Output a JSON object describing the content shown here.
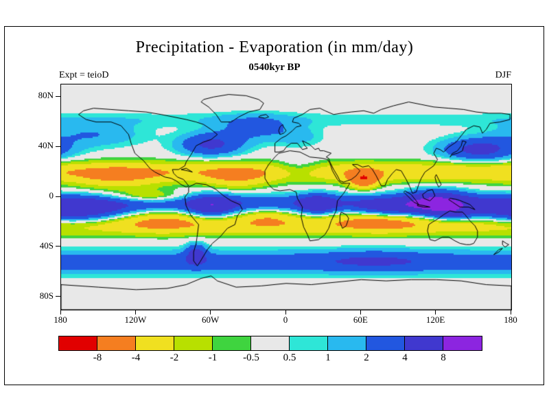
{
  "page": {
    "title": "Precipitation - Evaporation (in mm/day)",
    "subtitle": "0540kyr BP",
    "experiment_label": "Expt = teioD",
    "season_label": "DJF"
  },
  "chart_data": {
    "type": "heatmap",
    "projection": "equirectangular",
    "title": "Precipitation - Evaporation (in mm/day)",
    "subtitle": "0540kyr BP",
    "experiment": "teioD",
    "season": "DJF",
    "units": "mm/day",
    "grid": false,
    "x_axis": {
      "range": [
        -180,
        180
      ],
      "ticks": [
        "180",
        "120W",
        "60W",
        "0",
        "60E",
        "120E",
        "180"
      ],
      "tick_lons": [
        -180,
        -120,
        -60,
        0,
        60,
        120,
        180
      ]
    },
    "y_axis": {
      "range": [
        -90,
        90
      ],
      "ticks": [
        "80N",
        "40N",
        "0",
        "40S",
        "80S"
      ],
      "tick_lats": [
        80,
        40,
        0,
        -40,
        -80
      ]
    },
    "colorbar": {
      "position": "bottom",
      "levels": [
        -8,
        -4,
        -2,
        -1,
        -0.5,
        0.5,
        1,
        2,
        4,
        8
      ],
      "labels": [
        "-8",
        "-4",
        "-2",
        "-1",
        "-0.5",
        "0.5",
        "1",
        "2",
        "4",
        "8"
      ],
      "colors": [
        "#e10000",
        "#f57e20",
        "#f0e020",
        "#b8e000",
        "#3fd43f",
        "#e8e8e8",
        "#2ee6d7",
        "#29b9ef",
        "#2257e0",
        "#4038cf",
        "#8c25e0"
      ]
    },
    "field_features": [
      {
        "name": "itcz-band",
        "lat": -5,
        "lon": null,
        "latw": 7,
        "lonw": null,
        "amp": 3.5
      },
      {
        "name": "spcz",
        "lat": -12,
        "lon": -170,
        "latw": 10,
        "lonw": 40,
        "amp": 6
      },
      {
        "name": "indonesia-maritime-wet",
        "lat": -5,
        "lon": 120,
        "latw": 10,
        "lonw": 25,
        "amp": 7
      },
      {
        "name": "amazon-wet",
        "lat": -8,
        "lon": -60,
        "latw": 9,
        "lonw": 18,
        "amp": 5
      },
      {
        "name": "congo-wet",
        "lat": -6,
        "lon": 25,
        "latw": 8,
        "lonw": 14,
        "amp": 4.5
      },
      {
        "name": "south-indian-itcz",
        "lat": -10,
        "lon": 80,
        "latw": 8,
        "lonw": 25,
        "amp": 4
      },
      {
        "name": "north-subtropical-dry-band",
        "lat": 20,
        "lon": null,
        "latw": 8,
        "lonw": null,
        "amp": -3.5
      },
      {
        "name": "northeast-pacific-trades-dry",
        "lat": 15,
        "lon": -135,
        "latw": 10,
        "lonw": 35,
        "amp": -2.5
      },
      {
        "name": "north-atlantic-trades-dry",
        "lat": 15,
        "lon": -40,
        "latw": 9,
        "lonw": 25,
        "amp": -2.5
      },
      {
        "name": "arabian-sea-dry",
        "lat": 14,
        "lon": 62,
        "latw": 7,
        "lonw": 12,
        "amp": -6
      },
      {
        "name": "sahara-moderation",
        "lat": 22,
        "lon": 10,
        "latw": 8,
        "lonw": 20,
        "amp": 2
      },
      {
        "name": "south-subtropical-dry-band",
        "lat": -22,
        "lon": null,
        "latw": 8,
        "lonw": null,
        "amp": -3.5
      },
      {
        "name": "south-indian-dry",
        "lat": -18,
        "lon": 75,
        "latw": 8,
        "lonw": 30,
        "amp": -3
      },
      {
        "name": "southeast-pacific-dry",
        "lat": -18,
        "lon": -100,
        "latw": 9,
        "lonw": 30,
        "amp": -2
      },
      {
        "name": "south-atlantic-dry",
        "lat": -15,
        "lon": -15,
        "latw": 7,
        "lonw": 20,
        "amp": -2
      },
      {
        "name": "australia-monsoon-wet",
        "lat": -14,
        "lon": 133,
        "latw": 6,
        "lonw": 18,
        "amp": 3
      },
      {
        "name": "kuroshio-storm-track-wet",
        "lat": 38,
        "lon": 155,
        "latw": 9,
        "lonw": 30,
        "amp": 5
      },
      {
        "name": "gulf-stream-storm-track-wet",
        "lat": 42,
        "lon": -60,
        "latw": 9,
        "lonw": 25,
        "amp": 4.5
      },
      {
        "name": "north-atlantic-storm-track",
        "lat": 55,
        "lon": -25,
        "latw": 10,
        "lonw": 30,
        "amp": 2.5
      },
      {
        "name": "north-pacific-storm-track",
        "lat": 50,
        "lon": -155,
        "latw": 10,
        "lonw": 40,
        "amp": 2
      },
      {
        "name": "southern-ocean-storm-track",
        "lat": -52,
        "lon": null,
        "latw": 9,
        "lonw": null,
        "amp": 3.2
      },
      {
        "name": "southern-indian-storm-peak",
        "lat": -50,
        "lon": 70,
        "latw": 8,
        "lonw": 40,
        "amp": 1.5
      },
      {
        "name": "equatorial-east-pacific-dry",
        "lat": 0,
        "lon": -110,
        "latw": 5,
        "lonw": 30,
        "amp": -3
      },
      {
        "name": "europe-wet",
        "lat": 48,
        "lon": 10,
        "latw": 8,
        "lonw": 20,
        "amp": 1.2
      },
      {
        "name": "subarctic-band",
        "lat": 62,
        "lon": null,
        "latw": 6,
        "lonw": null,
        "amp": 0.8
      },
      {
        "name": "patagonia-wet",
        "lat": -45,
        "lon": -72,
        "latw": 8,
        "lonw": 8,
        "amp": 4
      }
    ]
  }
}
